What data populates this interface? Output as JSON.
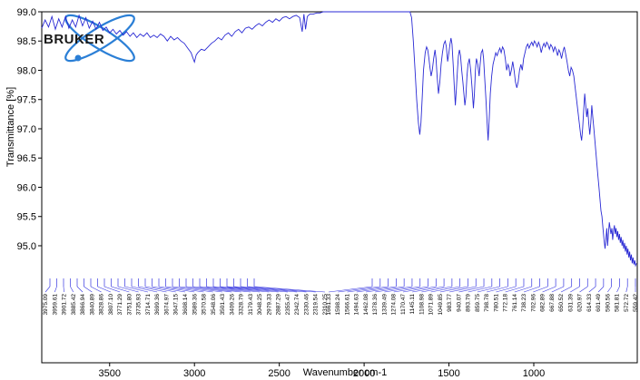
{
  "chart_data": {
    "type": "line",
    "title": "",
    "xlabel": "Wavenumber cm-1",
    "ylabel": "Transmittance [%]",
    "xlim": [
      3900,
      390
    ],
    "ylim": [
      94.55,
      99.0
    ],
    "x_reversed": true,
    "grid": false,
    "series_color": "#2a2ad4",
    "x_ticks": [
      3500,
      3000,
      2500,
      2000,
      1500,
      1000
    ],
    "y_ticks": [
      95.0,
      95.5,
      96.0,
      96.5,
      97.0,
      97.5,
      98.0,
      98.5,
      99.0
    ],
    "series": [
      {
        "points": [
          [
            3900,
            98.72
          ],
          [
            3880,
            98.86
          ],
          [
            3860,
            98.74
          ],
          [
            3840,
            98.92
          ],
          [
            3820,
            98.7
          ],
          [
            3800,
            98.88
          ],
          [
            3780,
            98.74
          ],
          [
            3760,
            98.92
          ],
          [
            3740,
            98.72
          ],
          [
            3720,
            98.86
          ],
          [
            3700,
            98.74
          ],
          [
            3680,
            98.94
          ],
          [
            3660,
            98.76
          ],
          [
            3640,
            98.9
          ],
          [
            3620,
            98.72
          ],
          [
            3600,
            98.84
          ],
          [
            3580,
            98.7
          ],
          [
            3560,
            98.82
          ],
          [
            3540,
            98.68
          ],
          [
            3520,
            98.74
          ],
          [
            3500,
            98.64
          ],
          [
            3480,
            98.7
          ],
          [
            3460,
            98.62
          ],
          [
            3440,
            98.68
          ],
          [
            3420,
            98.6
          ],
          [
            3400,
            98.66
          ],
          [
            3380,
            98.58
          ],
          [
            3360,
            98.64
          ],
          [
            3340,
            98.56
          ],
          [
            3320,
            98.62
          ],
          [
            3300,
            98.58
          ],
          [
            3280,
            98.64
          ],
          [
            3260,
            98.56
          ],
          [
            3240,
            98.6
          ],
          [
            3220,
            98.56
          ],
          [
            3200,
            98.62
          ],
          [
            3180,
            98.58
          ],
          [
            3160,
            98.5
          ],
          [
            3140,
            98.58
          ],
          [
            3120,
            98.52
          ],
          [
            3100,
            98.56
          ],
          [
            3080,
            98.5
          ],
          [
            3060,
            98.46
          ],
          [
            3040,
            98.38
          ],
          [
            3020,
            98.3
          ],
          [
            3010,
            98.22
          ],
          [
            3000,
            98.14
          ],
          [
            2990,
            98.26
          ],
          [
            2980,
            98.3
          ],
          [
            2960,
            98.36
          ],
          [
            2940,
            98.34
          ],
          [
            2920,
            98.4
          ],
          [
            2900,
            98.46
          ],
          [
            2880,
            98.5
          ],
          [
            2860,
            98.56
          ],
          [
            2840,
            98.52
          ],
          [
            2820,
            98.6
          ],
          [
            2800,
            98.64
          ],
          [
            2780,
            98.58
          ],
          [
            2760,
            98.66
          ],
          [
            2740,
            98.7
          ],
          [
            2720,
            98.64
          ],
          [
            2700,
            98.72
          ],
          [
            2680,
            98.74
          ],
          [
            2660,
            98.7
          ],
          [
            2640,
            98.76
          ],
          [
            2620,
            98.8
          ],
          [
            2600,
            98.76
          ],
          [
            2580,
            98.82
          ],
          [
            2560,
            98.86
          ],
          [
            2540,
            98.82
          ],
          [
            2520,
            98.88
          ],
          [
            2500,
            98.84
          ],
          [
            2480,
            98.9
          ],
          [
            2460,
            98.92
          ],
          [
            2440,
            98.88
          ],
          [
            2420,
            98.92
          ],
          [
            2400,
            98.94
          ],
          [
            2380,
            98.9
          ],
          [
            2365,
            98.66
          ],
          [
            2355,
            98.96
          ],
          [
            2345,
            98.7
          ],
          [
            2335,
            98.92
          ],
          [
            2320,
            98.96
          ],
          [
            2300,
            98.96
          ],
          [
            2280,
            98.98
          ],
          [
            2260,
            98.98
          ],
          [
            2240,
            99.0
          ],
          [
            2200,
            99.0
          ],
          [
            2100,
            99.0
          ],
          [
            2000,
            99.0
          ],
          [
            1900,
            99.0
          ],
          [
            1800,
            99.0
          ],
          [
            1750,
            99.0
          ],
          [
            1730,
            99.0
          ],
          [
            1720,
            98.9
          ],
          [
            1710,
            98.5
          ],
          [
            1700,
            98.0
          ],
          [
            1690,
            97.5
          ],
          [
            1680,
            97.1
          ],
          [
            1672,
            96.9
          ],
          [
            1665,
            97.1
          ],
          [
            1658,
            97.5
          ],
          [
            1650,
            98.0
          ],
          [
            1640,
            98.3
          ],
          [
            1632,
            98.4
          ],
          [
            1625,
            98.35
          ],
          [
            1618,
            98.2
          ],
          [
            1612,
            98.05
          ],
          [
            1605,
            97.9
          ],
          [
            1598,
            98.0
          ],
          [
            1590,
            98.2
          ],
          [
            1582,
            98.35
          ],
          [
            1576,
            98.2
          ],
          [
            1570,
            97.9
          ],
          [
            1562,
            97.6
          ],
          [
            1554,
            97.8
          ],
          [
            1546,
            98.1
          ],
          [
            1538,
            98.3
          ],
          [
            1530,
            98.45
          ],
          [
            1522,
            98.5
          ],
          [
            1515,
            98.4
          ],
          [
            1508,
            98.15
          ],
          [
            1500,
            98.3
          ],
          [
            1494,
            98.45
          ],
          [
            1488,
            98.55
          ],
          [
            1482,
            98.45
          ],
          [
            1475,
            98.1
          ],
          [
            1468,
            97.7
          ],
          [
            1462,
            97.4
          ],
          [
            1456,
            97.7
          ],
          [
            1450,
            98.0
          ],
          [
            1444,
            98.25
          ],
          [
            1438,
            98.35
          ],
          [
            1432,
            98.25
          ],
          [
            1425,
            98.0
          ],
          [
            1418,
            97.8
          ],
          [
            1412,
            97.6
          ],
          [
            1406,
            97.4
          ],
          [
            1400,
            97.55
          ],
          [
            1394,
            97.9
          ],
          [
            1388,
            98.1
          ],
          [
            1380,
            98.2
          ],
          [
            1372,
            98.0
          ],
          [
            1364,
            97.7
          ],
          [
            1356,
            97.35
          ],
          [
            1350,
            97.6
          ],
          [
            1344,
            98.0
          ],
          [
            1338,
            98.2
          ],
          [
            1330,
            98.1
          ],
          [
            1322,
            97.9
          ],
          [
            1316,
            98.1
          ],
          [
            1310,
            98.3
          ],
          [
            1302,
            98.35
          ],
          [
            1296,
            98.2
          ],
          [
            1290,
            97.9
          ],
          [
            1282,
            97.5
          ],
          [
            1275,
            97.1
          ],
          [
            1269,
            96.8
          ],
          [
            1262,
            97.2
          ],
          [
            1256,
            97.6
          ],
          [
            1248,
            97.9
          ],
          [
            1240,
            98.1
          ],
          [
            1232,
            98.2
          ],
          [
            1224,
            98.3
          ],
          [
            1216,
            98.25
          ],
          [
            1208,
            98.32
          ],
          [
            1200,
            98.38
          ],
          [
            1192,
            98.3
          ],
          [
            1184,
            98.4
          ],
          [
            1176,
            98.35
          ],
          [
            1168,
            98.2
          ],
          [
            1160,
            98.0
          ],
          [
            1152,
            98.1
          ],
          [
            1146,
            98.05
          ],
          [
            1140,
            97.9
          ],
          [
            1132,
            98.0
          ],
          [
            1124,
            98.15
          ],
          [
            1116,
            98.0
          ],
          [
            1108,
            97.8
          ],
          [
            1100,
            97.7
          ],
          [
            1092,
            97.8
          ],
          [
            1084,
            98.0
          ],
          [
            1076,
            98.1
          ],
          [
            1068,
            98.0
          ],
          [
            1060,
            98.2
          ],
          [
            1052,
            98.3
          ],
          [
            1044,
            98.4
          ],
          [
            1036,
            98.45
          ],
          [
            1028,
            98.38
          ],
          [
            1020,
            98.44
          ],
          [
            1012,
            98.48
          ],
          [
            1004,
            98.42
          ],
          [
            996,
            98.5
          ],
          [
            988,
            98.46
          ],
          [
            980,
            98.4
          ],
          [
            972,
            98.48
          ],
          [
            964,
            98.42
          ],
          [
            956,
            98.3
          ],
          [
            948,
            98.4
          ],
          [
            940,
            98.46
          ],
          [
            932,
            98.4
          ],
          [
            924,
            98.48
          ],
          [
            916,
            98.44
          ],
          [
            908,
            98.36
          ],
          [
            900,
            98.44
          ],
          [
            892,
            98.4
          ],
          [
            884,
            98.32
          ],
          [
            876,
            98.4
          ],
          [
            868,
            98.35
          ],
          [
            860,
            98.25
          ],
          [
            852,
            98.35
          ],
          [
            844,
            98.3
          ],
          [
            836,
            98.2
          ],
          [
            828,
            98.32
          ],
          [
            820,
            98.4
          ],
          [
            812,
            98.28
          ],
          [
            804,
            98.15
          ],
          [
            796,
            98.0
          ],
          [
            788,
            97.9
          ],
          [
            780,
            98.05
          ],
          [
            772,
            98.0
          ],
          [
            764,
            97.9
          ],
          [
            756,
            97.7
          ],
          [
            748,
            97.5
          ],
          [
            740,
            97.3
          ],
          [
            732,
            97.1
          ],
          [
            724,
            96.9
          ],
          [
            718,
            96.8
          ],
          [
            712,
            97.0
          ],
          [
            706,
            97.3
          ],
          [
            700,
            97.6
          ],
          [
            694,
            97.4
          ],
          [
            688,
            97.2
          ],
          [
            682,
            97.35
          ],
          [
            676,
            97.1
          ],
          [
            670,
            96.9
          ],
          [
            664,
            97.1
          ],
          [
            658,
            97.4
          ],
          [
            652,
            97.2
          ],
          [
            646,
            97.0
          ],
          [
            640,
            96.8
          ],
          [
            634,
            96.6
          ],
          [
            628,
            96.4
          ],
          [
            622,
            96.2
          ],
          [
            616,
            96.0
          ],
          [
            610,
            95.8
          ],
          [
            604,
            95.6
          ],
          [
            598,
            95.5
          ],
          [
            592,
            95.3
          ],
          [
            586,
            95.1
          ],
          [
            580,
            94.95
          ],
          [
            575,
            95.1
          ],
          [
            570,
            95.3
          ],
          [
            565,
            95.0
          ],
          [
            560,
            95.2
          ],
          [
            555,
            95.4
          ],
          [
            550,
            95.3
          ],
          [
            545,
            95.2
          ],
          [
            540,
            95.3
          ],
          [
            535,
            95.1
          ],
          [
            530,
            95.25
          ],
          [
            525,
            95.35
          ],
          [
            520,
            95.2
          ],
          [
            515,
            95.3
          ],
          [
            510,
            95.15
          ],
          [
            505,
            95.25
          ],
          [
            500,
            95.1
          ],
          [
            495,
            95.2
          ],
          [
            490,
            95.05
          ],
          [
            485,
            95.15
          ],
          [
            480,
            95.0
          ],
          [
            475,
            95.1
          ],
          [
            470,
            94.95
          ],
          [
            465,
            95.05
          ],
          [
            460,
            94.9
          ],
          [
            455,
            95.0
          ],
          [
            450,
            94.85
          ],
          [
            445,
            94.95
          ],
          [
            440,
            94.8
          ],
          [
            435,
            94.9
          ],
          [
            430,
            94.75
          ],
          [
            425,
            94.85
          ],
          [
            420,
            94.7
          ],
          [
            415,
            94.8
          ],
          [
            410,
            94.68
          ],
          [
            405,
            94.75
          ],
          [
            400,
            94.66
          ],
          [
            395,
            94.7
          ]
        ]
      }
    ],
    "peak_labels": [
      "3975.09",
      "3959.61",
      "3901.72",
      "3885.42",
      "3866.94",
      "3840.89",
      "3828.86",
      "3807.10",
      "3771.29",
      "3751.80",
      "3735.93",
      "3714.71",
      "3699.36",
      "3674.97",
      "3647.15",
      "3608.14",
      "3589.36",
      "3570.58",
      "3548.06",
      "3501.43",
      "3409.26",
      "3328.79",
      "3179.43",
      "3048.25",
      "2979.33",
      "2887.29",
      "2355.47",
      "2342.74",
      "2330.46",
      "2319.54",
      "2310.25",
      "1661.33",
      "1598.24",
      "1566.61",
      "1494.63",
      "1462.08",
      "1378.36",
      "1339.49",
      "1274.08",
      "1170.47",
      "1145.11",
      "1108.98",
      "1071.89",
      "1049.85",
      "983.77",
      "940.07",
      "893.79",
      "859.75",
      "798.78",
      "780.51",
      "772.18",
      "761.14",
      "738.23",
      "702.96",
      "682.89",
      "667.88",
      "650.52",
      "631.39",
      "620.97",
      "614.33",
      "601.49",
      "590.56",
      "581.81",
      "572.72",
      "559.42"
    ]
  },
  "logo": {
    "text": "BRUKER",
    "color": "#1a1a1a",
    "orbit_color": "#2b7fd6"
  },
  "colors": {
    "axis": "#000000",
    "series": "#2a2ad4",
    "peak_lines": "#3535e0"
  }
}
